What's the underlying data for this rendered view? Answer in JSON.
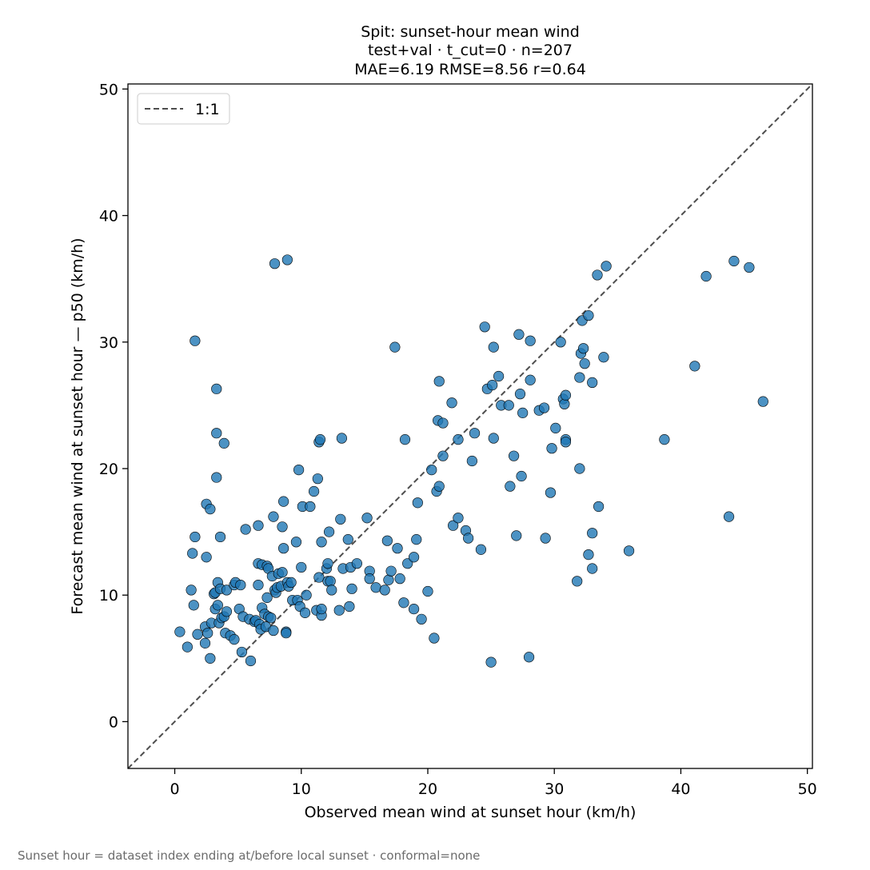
{
  "chart_data": {
    "type": "scatter",
    "title": [
      "Spit: sunset-hour mean wind",
      "test+val · t_cut=0 · n=207",
      "MAE=6.19  RMSE=8.56  r=0.64"
    ],
    "xlabel": "Observed mean wind at sunset hour (km/h)",
    "ylabel": "Forecast mean wind at sunset hour — p50 (km/h)",
    "xlim": [
      -3.7,
      50.4
    ],
    "ylim": [
      -3.7,
      50.4
    ],
    "xticks": [
      0,
      10,
      20,
      30,
      40,
      50
    ],
    "yticks": [
      0,
      10,
      20,
      30,
      40,
      50
    ],
    "grid": false,
    "legend": {
      "position": "top-left",
      "entries": [
        {
          "label": "1:1",
          "style": "dashed",
          "color": "#4d4d4d"
        }
      ]
    },
    "reference_line": {
      "label": "1:1",
      "from": [
        -3.7,
        -3.7
      ],
      "to": [
        50.4,
        50.4
      ]
    },
    "marker_color": "#1f77b4",
    "points": [
      [
        0.4,
        7.1
      ],
      [
        1.0,
        5.9
      ],
      [
        1.3,
        10.4
      ],
      [
        1.4,
        13.3
      ],
      [
        1.5,
        9.2
      ],
      [
        1.6,
        14.6
      ],
      [
        1.6,
        30.1
      ],
      [
        1.8,
        6.9
      ],
      [
        2.4,
        6.2
      ],
      [
        2.4,
        7.5
      ],
      [
        2.5,
        17.2
      ],
      [
        2.5,
        13.0
      ],
      [
        2.6,
        7.0
      ],
      [
        2.8,
        5.0
      ],
      [
        2.8,
        16.8
      ],
      [
        2.9,
        7.8
      ],
      [
        3.1,
        10.1
      ],
      [
        3.2,
        10.2
      ],
      [
        3.2,
        8.9
      ],
      [
        3.3,
        26.3
      ],
      [
        3.3,
        22.8
      ],
      [
        3.3,
        19.3
      ],
      [
        3.4,
        11.0
      ],
      [
        3.4,
        9.2
      ],
      [
        3.5,
        7.8
      ],
      [
        3.6,
        10.5
      ],
      [
        3.6,
        14.6
      ],
      [
        3.7,
        8.2
      ],
      [
        3.9,
        8.3
      ],
      [
        3.9,
        22.0
      ],
      [
        4.0,
        7.0
      ],
      [
        4.1,
        10.4
      ],
      [
        4.1,
        8.7
      ],
      [
        4.4,
        6.8
      ],
      [
        4.7,
        6.5
      ],
      [
        4.7,
        10.8
      ],
      [
        4.8,
        11.0
      ],
      [
        5.1,
        8.9
      ],
      [
        5.2,
        10.8
      ],
      [
        5.3,
        5.5
      ],
      [
        5.4,
        8.3
      ],
      [
        5.6,
        15.2
      ],
      [
        5.9,
        8.1
      ],
      [
        6.0,
        4.8
      ],
      [
        6.3,
        7.9
      ],
      [
        6.4,
        8.0
      ],
      [
        6.6,
        12.5
      ],
      [
        6.6,
        15.5
      ],
      [
        6.6,
        10.8
      ],
      [
        6.7,
        7.7
      ],
      [
        6.8,
        7.3
      ],
      [
        6.9,
        9.0
      ],
      [
        6.9,
        12.4
      ],
      [
        7.1,
        8.5
      ],
      [
        7.2,
        7.5
      ],
      [
        7.3,
        9.8
      ],
      [
        7.3,
        12.3
      ],
      [
        7.4,
        8.3
      ],
      [
        7.4,
        12.1
      ],
      [
        7.6,
        8.2
      ],
      [
        7.7,
        11.5
      ],
      [
        7.8,
        7.2
      ],
      [
        7.8,
        16.2
      ],
      [
        7.9,
        36.2
      ],
      [
        7.9,
        10.4
      ],
      [
        8.0,
        10.2
      ],
      [
        8.1,
        10.6
      ],
      [
        8.2,
        11.7
      ],
      [
        8.4,
        10.7
      ],
      [
        8.5,
        15.4
      ],
      [
        8.5,
        11.8
      ],
      [
        8.6,
        17.4
      ],
      [
        8.6,
        13.7
      ],
      [
        8.8,
        7.1
      ],
      [
        8.8,
        7.0
      ],
      [
        8.9,
        11.0
      ],
      [
        8.9,
        36.5
      ],
      [
        9.0,
        10.7
      ],
      [
        9.2,
        11.0
      ],
      [
        9.3,
        9.6
      ],
      [
        9.6,
        14.2
      ],
      [
        9.7,
        9.6
      ],
      [
        9.8,
        19.9
      ],
      [
        9.9,
        9.1
      ],
      [
        10.0,
        12.2
      ],
      [
        10.1,
        17.0
      ],
      [
        10.3,
        8.6
      ],
      [
        10.4,
        10.0
      ],
      [
        10.7,
        17.0
      ],
      [
        11.0,
        18.2
      ],
      [
        11.2,
        8.8
      ],
      [
        11.3,
        19.2
      ],
      [
        11.4,
        22.1
      ],
      [
        11.4,
        11.4
      ],
      [
        11.5,
        22.3
      ],
      [
        11.6,
        14.2
      ],
      [
        11.6,
        8.4
      ],
      [
        11.6,
        8.9
      ],
      [
        12.0,
        12.1
      ],
      [
        12.1,
        12.5
      ],
      [
        12.1,
        11.1
      ],
      [
        12.2,
        15.0
      ],
      [
        12.3,
        11.1
      ],
      [
        12.4,
        10.4
      ],
      [
        13.0,
        8.8
      ],
      [
        13.1,
        16.0
      ],
      [
        13.2,
        22.4
      ],
      [
        13.3,
        12.1
      ],
      [
        13.7,
        14.4
      ],
      [
        13.8,
        9.1
      ],
      [
        13.9,
        12.2
      ],
      [
        14.0,
        10.5
      ],
      [
        14.4,
        12.5
      ],
      [
        15.2,
        16.1
      ],
      [
        15.4,
        11.9
      ],
      [
        15.4,
        11.3
      ],
      [
        15.9,
        10.6
      ],
      [
        16.6,
        10.4
      ],
      [
        16.8,
        14.3
      ],
      [
        16.9,
        11.2
      ],
      [
        17.1,
        11.9
      ],
      [
        17.4,
        29.6
      ],
      [
        17.6,
        13.7
      ],
      [
        17.8,
        11.3
      ],
      [
        18.1,
        9.4
      ],
      [
        18.2,
        22.3
      ],
      [
        18.4,
        12.5
      ],
      [
        18.9,
        8.9
      ],
      [
        18.9,
        13.0
      ],
      [
        19.1,
        14.4
      ],
      [
        19.2,
        17.3
      ],
      [
        19.5,
        8.1
      ],
      [
        20.0,
        10.3
      ],
      [
        20.3,
        19.9
      ],
      [
        20.5,
        6.6
      ],
      [
        20.7,
        18.2
      ],
      [
        20.8,
        23.8
      ],
      [
        20.9,
        18.6
      ],
      [
        20.9,
        26.9
      ],
      [
        21.2,
        21.0
      ],
      [
        21.2,
        23.6
      ],
      [
        21.9,
        25.2
      ],
      [
        22.0,
        15.5
      ],
      [
        22.4,
        16.1
      ],
      [
        22.4,
        22.3
      ],
      [
        23.0,
        15.1
      ],
      [
        23.2,
        14.5
      ],
      [
        23.5,
        20.6
      ],
      [
        23.7,
        22.8
      ],
      [
        24.2,
        13.6
      ],
      [
        24.5,
        31.2
      ],
      [
        24.7,
        26.3
      ],
      [
        25.0,
        4.7
      ],
      [
        25.1,
        26.6
      ],
      [
        25.2,
        22.4
      ],
      [
        25.2,
        29.6
      ],
      [
        25.6,
        27.3
      ],
      [
        25.8,
        25.0
      ],
      [
        26.4,
        25.0
      ],
      [
        26.5,
        18.6
      ],
      [
        26.8,
        21.0
      ],
      [
        27.0,
        14.7
      ],
      [
        27.2,
        30.6
      ],
      [
        27.3,
        25.9
      ],
      [
        27.4,
        19.4
      ],
      [
        27.5,
        24.4
      ],
      [
        28.0,
        5.1
      ],
      [
        28.1,
        30.1
      ],
      [
        28.1,
        27.0
      ],
      [
        28.8,
        24.6
      ],
      [
        29.2,
        24.8
      ],
      [
        29.3,
        14.5
      ],
      [
        29.7,
        18.1
      ],
      [
        29.8,
        21.6
      ],
      [
        30.1,
        23.2
      ],
      [
        30.5,
        30.0
      ],
      [
        30.7,
        25.5
      ],
      [
        30.8,
        25.1
      ],
      [
        30.9,
        25.8
      ],
      [
        30.9,
        22.3
      ],
      [
        30.9,
        22.1
      ],
      [
        31.8,
        11.1
      ],
      [
        32.0,
        27.2
      ],
      [
        32.0,
        20.0
      ],
      [
        32.1,
        29.1
      ],
      [
        32.2,
        31.7
      ],
      [
        32.3,
        29.5
      ],
      [
        32.4,
        28.3
      ],
      [
        32.7,
        13.2
      ],
      [
        32.7,
        32.1
      ],
      [
        33.0,
        26.8
      ],
      [
        33.0,
        12.1
      ],
      [
        33.0,
        14.9
      ],
      [
        33.4,
        35.3
      ],
      [
        33.5,
        17.0
      ],
      [
        33.9,
        28.8
      ],
      [
        34.1,
        36.0
      ],
      [
        35.9,
        13.5
      ],
      [
        38.7,
        22.3
      ],
      [
        41.1,
        28.1
      ],
      [
        42.0,
        35.2
      ],
      [
        43.8,
        16.2
      ],
      [
        44.2,
        36.4
      ],
      [
        45.4,
        35.9
      ],
      [
        46.5,
        25.3
      ]
    ]
  },
  "footnote": "Sunset hour = dataset index ending at/before local sunset · conformal=none"
}
